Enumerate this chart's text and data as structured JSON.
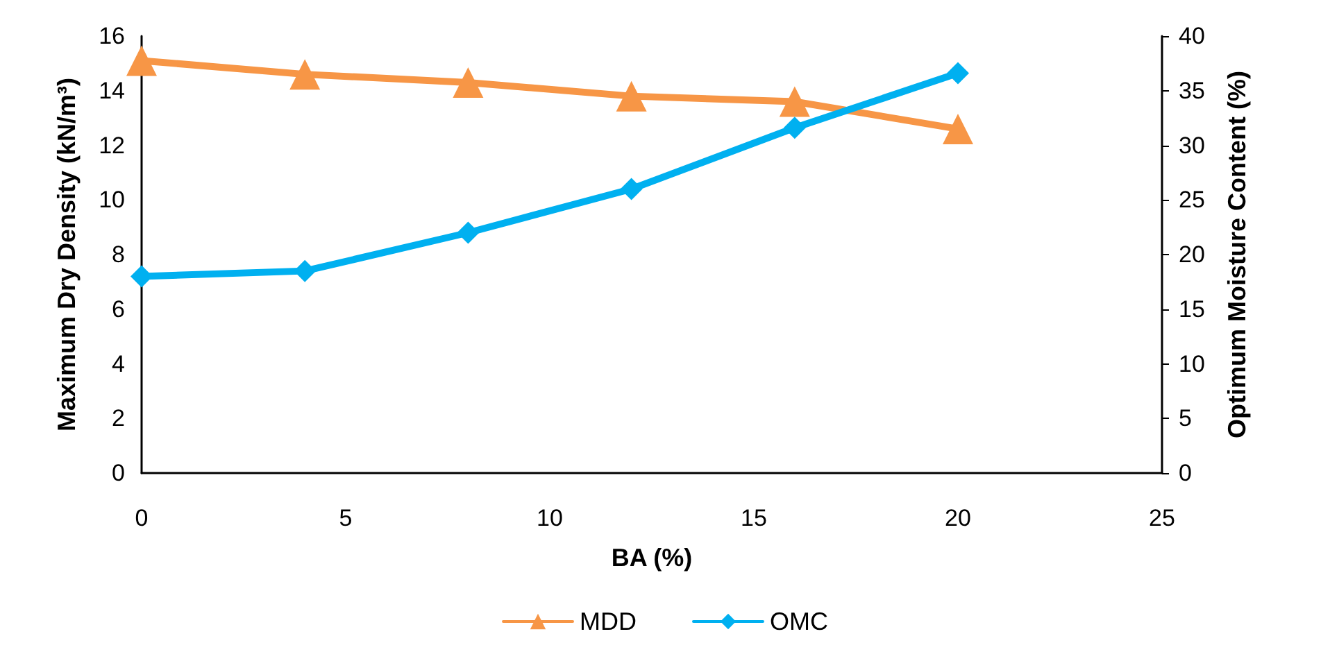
{
  "chart_data": {
    "type": "line",
    "xlabel": "BA (%)",
    "ylabel": "Maximum Dry Density (kN/m³)",
    "y2label": "Optimum Moisture Content (%)",
    "x": [
      0,
      4,
      8,
      12,
      16,
      20
    ],
    "series": [
      {
        "name": "MDD",
        "color": "#f79646",
        "marker": "triangle",
        "values": [
          15.1,
          14.6,
          14.3,
          13.8,
          13.6,
          12.6
        ]
      },
      {
        "name": "OMC",
        "color": "#00b0f0",
        "marker": "diamond",
        "axis": "y2",
        "values": [
          18.0,
          18.5,
          22.0,
          26.0,
          31.6,
          36.6
        ]
      }
    ],
    "xlim": [
      0,
      25
    ],
    "xticks": [
      0,
      5,
      10,
      15,
      20,
      25
    ],
    "ylim": [
      0,
      16
    ],
    "yticks": [
      0,
      2,
      4,
      6,
      8,
      10,
      12,
      14,
      16
    ],
    "y2lim": [
      0,
      40
    ],
    "y2ticks": [
      0,
      5,
      10,
      15,
      20,
      25,
      30,
      35,
      40
    ],
    "grid": false,
    "legend": "bottom"
  }
}
